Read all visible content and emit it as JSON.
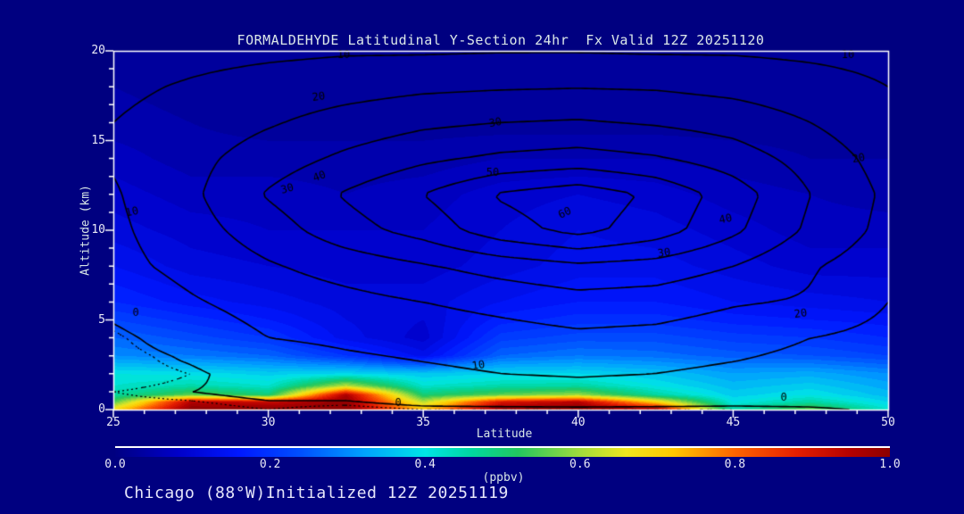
{
  "header": {
    "title": "FORMALDEHYDE Latitudinal Y-Section 24hr  Fx Valid 12Z 20251120"
  },
  "footer": {
    "text": "Chicago (88°W)Initialized 12Z 20251119"
  },
  "colors": {
    "background": "#000080",
    "title_text": "#DCE8E8",
    "axis_label_text": "#D8E6E6",
    "tick_text": "#EAEAF6",
    "footer_text": "#E6E6FA",
    "axis_box": "#FFFFFF",
    "contour_line": "#000000",
    "colormap_stops": [
      [
        0.0,
        "#000082"
      ],
      [
        0.08,
        "#0000C8"
      ],
      [
        0.16,
        "#0018FF"
      ],
      [
        0.24,
        "#0050FF"
      ],
      [
        0.32,
        "#00A0FF"
      ],
      [
        0.4,
        "#00E6E6"
      ],
      [
        0.46,
        "#00D7A0"
      ],
      [
        0.52,
        "#22C85F"
      ],
      [
        0.6,
        "#A0DC3C"
      ],
      [
        0.66,
        "#F0E61E"
      ],
      [
        0.72,
        "#FFC800"
      ],
      [
        0.8,
        "#FF6400"
      ],
      [
        0.88,
        "#E61E00"
      ],
      [
        0.95,
        "#B40000"
      ],
      [
        1.0,
        "#8C0000"
      ]
    ]
  },
  "axes": {
    "x": {
      "label": "Latitude",
      "ticks": [
        {
          "label": "25",
          "value": 25
        },
        {
          "label": "30",
          "value": 30
        },
        {
          "label": "35",
          "value": 35
        },
        {
          "label": "40",
          "value": 40
        },
        {
          "label": "45",
          "value": 45
        },
        {
          "label": "50",
          "value": 50
        }
      ]
    },
    "y": {
      "label": "Altitude (km)",
      "ticks": [
        {
          "label": "20",
          "value": 20
        },
        {
          "label": "15",
          "value": 15
        },
        {
          "label": "10",
          "value": 10
        },
        {
          "label": "5",
          "value": 5
        },
        {
          "label": "0",
          "value": 0
        }
      ]
    }
  },
  "colorbar": {
    "unit": "(ppbv)",
    "range": [
      0.0,
      1.0
    ],
    "ticks": [
      {
        "label": "0.0",
        "value": 0.0
      },
      {
        "label": "0.2",
        "value": 0.2
      },
      {
        "label": "0.4",
        "value": 0.4
      },
      {
        "label": "0.6",
        "value": 0.6
      },
      {
        "label": "0.8",
        "value": 0.8
      },
      {
        "label": "1.0",
        "value": 1.0
      }
    ]
  },
  "chart_data": {
    "type": "contour",
    "title": "FORMALDEHYDE Latitudinal Y-Section 24hr  Fx Valid 12Z 20251120",
    "xlabel": "Latitude",
    "ylabel": "Altitude (km)",
    "xlim": [
      25,
      50
    ],
    "ylim": [
      0,
      20
    ],
    "fill_units": "ppbv",
    "lats": [
      25,
      27.5,
      30,
      32.5,
      35,
      37.5,
      40,
      42.5,
      45,
      47.5,
      50
    ],
    "fill": {
      "alts": [
        0,
        0.4,
        0.8,
        1.3,
        2,
        3,
        4,
        5,
        6,
        8,
        10,
        12,
        14,
        16,
        20
      ],
      "values": [
        [
          0.68,
          1.0,
          1.0,
          1.0,
          0.72,
          0.98,
          1.0,
          0.95,
          0.45,
          0.56,
          0.42
        ],
        [
          0.55,
          0.95,
          0.92,
          1.0,
          0.62,
          0.9,
          0.95,
          0.7,
          0.4,
          0.46,
          0.38
        ],
        [
          0.46,
          0.56,
          0.5,
          0.96,
          0.5,
          0.56,
          0.6,
          0.46,
          0.37,
          0.4,
          0.35
        ],
        [
          0.42,
          0.45,
          0.42,
          0.62,
          0.42,
          0.45,
          0.46,
          0.4,
          0.35,
          0.37,
          0.33
        ],
        [
          0.4,
          0.39,
          0.37,
          0.38,
          0.36,
          0.38,
          0.38,
          0.36,
          0.32,
          0.33,
          0.3
        ],
        [
          0.3,
          0.28,
          0.26,
          0.2,
          0.13,
          0.26,
          0.28,
          0.27,
          0.25,
          0.24,
          0.22
        ],
        [
          0.26,
          0.23,
          0.2,
          0.13,
          0.09,
          0.21,
          0.23,
          0.23,
          0.21,
          0.2,
          0.18
        ],
        [
          0.22,
          0.19,
          0.16,
          0.12,
          0.1,
          0.17,
          0.19,
          0.19,
          0.17,
          0.16,
          0.15
        ],
        [
          0.18,
          0.15,
          0.13,
          0.11,
          0.11,
          0.14,
          0.16,
          0.16,
          0.14,
          0.13,
          0.12
        ],
        [
          0.14,
          0.11,
          0.1,
          0.09,
          0.09,
          0.11,
          0.13,
          0.13,
          0.11,
          0.09,
          0.09
        ],
        [
          0.11,
          0.09,
          0.08,
          0.08,
          0.08,
          0.1,
          0.12,
          0.11,
          0.09,
          0.07,
          0.07
        ],
        [
          0.09,
          0.07,
          0.07,
          0.06,
          0.07,
          0.09,
          0.1,
          0.09,
          0.07,
          0.06,
          0.05
        ],
        [
          0.07,
          0.05,
          0.05,
          0.05,
          0.05,
          0.06,
          0.06,
          0.06,
          0.05,
          0.04,
          0.04
        ],
        [
          0.05,
          0.04,
          0.03,
          0.03,
          0.03,
          0.03,
          0.03,
          0.03,
          0.03,
          0.03,
          0.03
        ],
        [
          0.03,
          0.02,
          0.02,
          0.02,
          0.02,
          0.02,
          0.02,
          0.02,
          0.02,
          0.02,
          0.02
        ]
      ]
    },
    "lines": {
      "alts": [
        0,
        1,
        2,
        3,
        4,
        6,
        8,
        10,
        12,
        14,
        16,
        18,
        20
      ],
      "values": [
        [
          -2,
          -2,
          -1,
          -2,
          -1,
          -1,
          -1,
          -1,
          -1,
          -0.5,
          0.5
        ],
        [
          -1,
          0,
          1,
          2,
          4,
          5,
          6,
          5,
          4,
          3,
          2
        ],
        [
          -3,
          -1,
          3,
          6,
          8,
          10,
          11,
          10,
          8,
          6,
          4
        ],
        [
          -3,
          1,
          6,
          9,
          11,
          13,
          14,
          13,
          11,
          8,
          5
        ],
        [
          -2,
          4,
          10,
          12,
          14,
          16,
          18,
          17,
          14,
          10,
          7
        ],
        [
          3,
          9,
          14,
          17,
          20,
          23,
          26,
          25,
          21,
          19,
          10
        ],
        [
          7,
          13,
          19,
          24,
          29,
          34,
          38,
          36,
          30,
          21,
          14
        ],
        [
          8,
          16,
          25,
          36,
          44,
          56,
          63,
          55,
          42,
          28,
          17
        ],
        [
          9,
          18,
          31,
          41,
          50,
          61,
          66,
          58,
          45,
          30,
          18
        ],
        [
          11,
          17,
          25,
          32,
          38,
          42,
          44,
          41,
          35,
          26,
          16
        ],
        [
          10,
          14,
          19,
          24,
          28,
          30,
          31,
          29,
          26,
          20,
          13
        ],
        [
          8,
          11,
          14,
          16,
          18,
          19,
          19.5,
          19,
          17,
          14,
          10
        ],
        [
          5,
          7,
          8,
          9,
          9,
          9.5,
          9.5,
          9,
          9,
          8,
          7
        ]
      ],
      "levels": [
        0,
        10,
        20,
        30,
        40,
        50,
        60
      ],
      "dashed_levels": [
        -1
      ],
      "labels": [
        {
          "x": 385,
          "y": 62,
          "t": "10",
          "r": 0
        },
        {
          "x": 950,
          "y": 62,
          "t": "10",
          "r": 0
        },
        {
          "x": 357,
          "y": 109,
          "t": "20",
          "r": -8
        },
        {
          "x": 555,
          "y": 138,
          "t": "30",
          "r": -10
        },
        {
          "x": 322,
          "y": 212,
          "t": "30",
          "r": -15
        },
        {
          "x": 358,
          "y": 198,
          "t": "40",
          "r": -20
        },
        {
          "x": 552,
          "y": 194,
          "t": "50",
          "r": 0
        },
        {
          "x": 633,
          "y": 239,
          "t": "60",
          "r": -25
        },
        {
          "x": 813,
          "y": 246,
          "t": "40",
          "r": -12
        },
        {
          "x": 744,
          "y": 284,
          "t": "30",
          "r": -8
        },
        {
          "x": 962,
          "y": 178,
          "t": "20",
          "r": -10
        },
        {
          "x": 897,
          "y": 352,
          "t": "20",
          "r": -8
        },
        {
          "x": 536,
          "y": 410,
          "t": "10",
          "r": -8
        },
        {
          "x": 148,
          "y": 238,
          "t": "10",
          "r": -12
        },
        {
          "x": 152,
          "y": 351,
          "t": "0",
          "r": 0
        },
        {
          "x": 446,
          "y": 452,
          "t": "0",
          "r": 0
        },
        {
          "x": 878,
          "y": 446,
          "t": "0",
          "r": 0
        }
      ]
    }
  }
}
